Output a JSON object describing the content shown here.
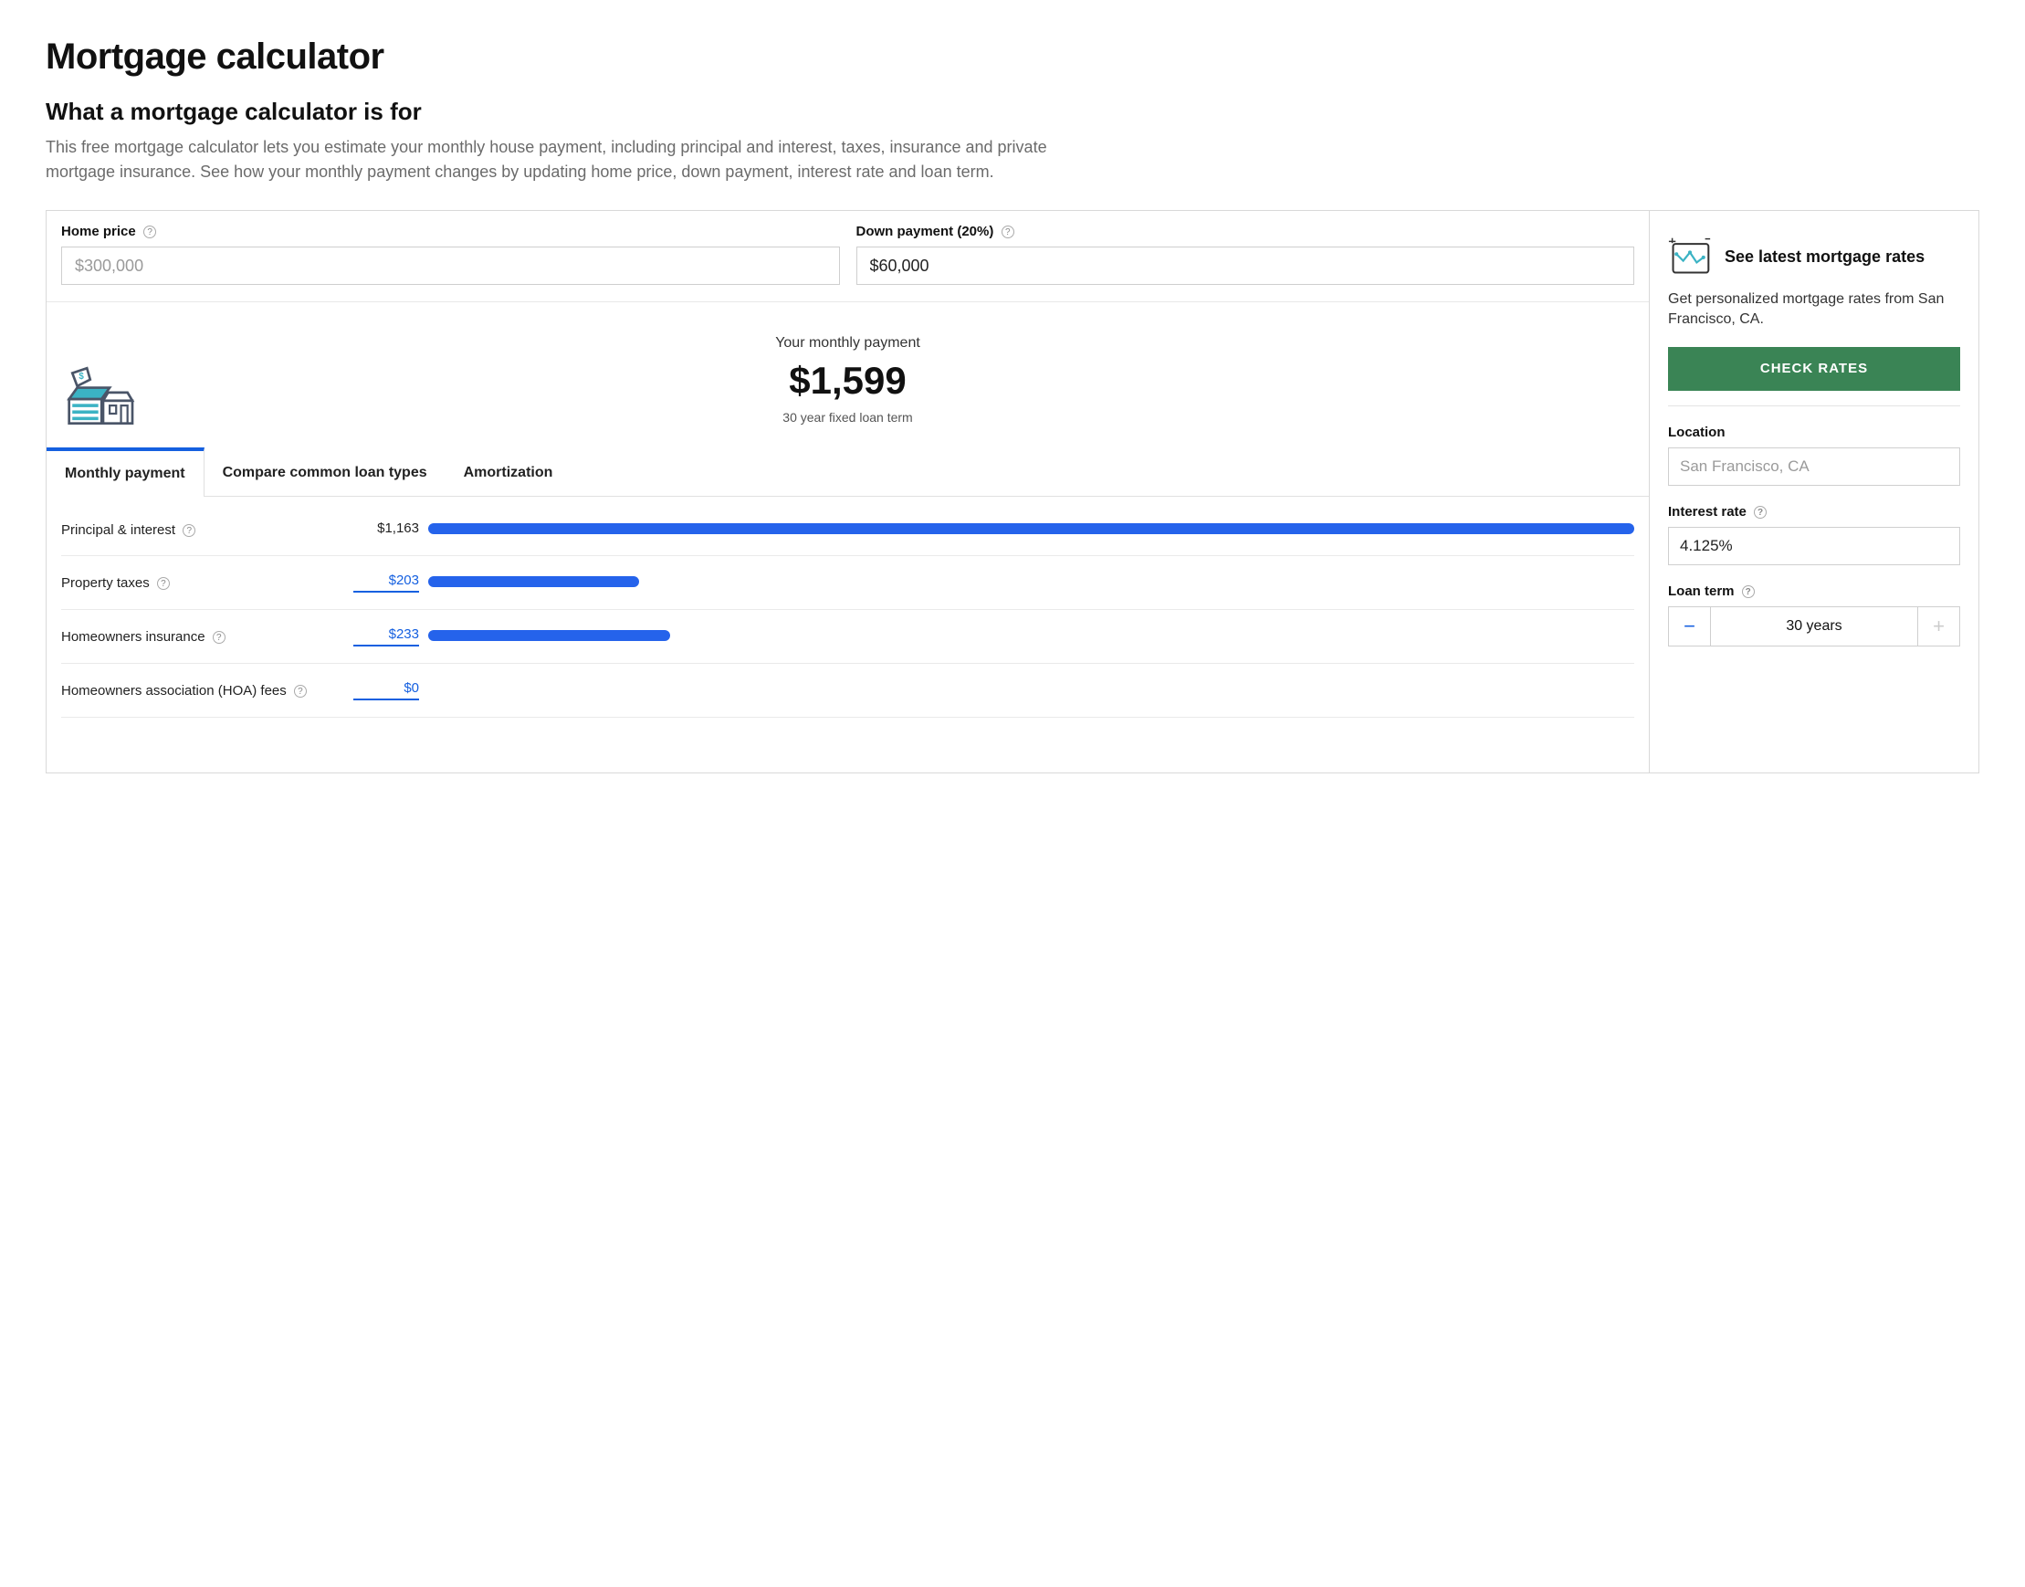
{
  "header": {
    "title": "Mortgage calculator",
    "subheading": "What a mortgage calculator is for",
    "description": "This free mortgage calculator lets you estimate your monthly house payment, including principal and interest, taxes, insurance and private mortgage insurance. See how your monthly payment changes by updating home price, down payment, interest rate and loan term."
  },
  "inputs": {
    "home_price": {
      "label": "Home price",
      "placeholder": "$300,000",
      "value": ""
    },
    "down_payment": {
      "label": "Down payment (20%)",
      "value": "$60,000"
    }
  },
  "summary": {
    "label": "Your monthly payment",
    "amount": "$1,599",
    "subtext": "30 year fixed loan term"
  },
  "tabs": {
    "items": [
      {
        "label": "Monthly payment",
        "active": true
      },
      {
        "label": "Compare common loan types",
        "active": false
      },
      {
        "label": "Amortization",
        "active": false
      }
    ]
  },
  "breakdown": {
    "max_value": 1163,
    "bar_color": "#2563eb",
    "value_color": "#1560e0",
    "rows": [
      {
        "label": "Principal & interest",
        "value_text": "$1,163",
        "value": 1163,
        "editable": false
      },
      {
        "label": "Property taxes",
        "value_text": "$203",
        "value": 203,
        "editable": true
      },
      {
        "label": "Homeowners insurance",
        "value_text": "$233",
        "value": 233,
        "editable": true
      },
      {
        "label": "Homeowners association (HOA) fees",
        "value_text": "$0",
        "value": 0,
        "editable": true
      }
    ]
  },
  "sidebar": {
    "rates_title": "See latest mortgage rates",
    "rates_sub": "Get personalized mortgage rates from San Francisco, CA.",
    "check_button": "CHECK RATES",
    "location": {
      "label": "Location",
      "placeholder": "San Francisco, CA",
      "value": ""
    },
    "interest_rate": {
      "label": "Interest rate",
      "value": "4.125%"
    },
    "loan_term": {
      "label": "Loan term",
      "value": "30 years",
      "minus_enabled": true,
      "plus_enabled": false
    }
  },
  "colors": {
    "primary_blue": "#1560e0",
    "bar_blue": "#2563eb",
    "button_green": "#3a8455",
    "border": "#cfcfcf",
    "text_muted": "#6b6b6b"
  }
}
